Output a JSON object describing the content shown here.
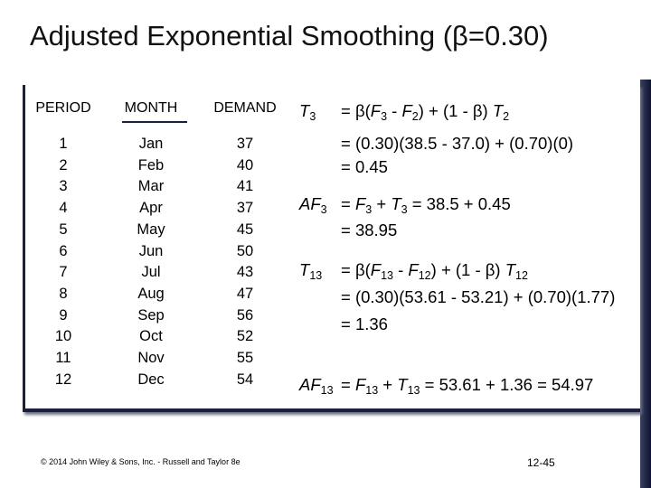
{
  "title": "Adjusted Exponential Smoothing (β=0.30)",
  "table": {
    "headers": [
      "PERIOD",
      "MONTH",
      "DEMAND"
    ],
    "rows": [
      [
        "1",
        "Jan",
        "37"
      ],
      [
        "2",
        "Feb",
        "40"
      ],
      [
        "3",
        "Mar",
        "41"
      ],
      [
        "4",
        "Apr",
        "37"
      ],
      [
        "5",
        "May",
        "45"
      ],
      [
        "6",
        "Jun",
        "50"
      ],
      [
        "7",
        "Jul",
        "43"
      ],
      [
        "8",
        "Aug",
        "47"
      ],
      [
        "9",
        "Sep",
        "56"
      ],
      [
        "10",
        "Oct",
        "52"
      ],
      [
        "11",
        "Nov",
        "55"
      ],
      [
        "12",
        "Dec",
        "54"
      ]
    ]
  },
  "formulas": [
    {
      "label": [
        "T",
        "3"
      ],
      "lines": [
        [
          "= β(",
          "F",
          "3",
          " - ",
          "F",
          "2",
          ") + (1 - β) ",
          "T",
          "2"
        ],
        [
          "= (0.30)(38.5 - 37.0) + (0.70)(0)"
        ],
        [
          "= 0.45"
        ]
      ]
    },
    {
      "label": [
        "AF",
        "3"
      ],
      "lines": [
        [
          "= ",
          "F",
          "3",
          " + ",
          "T",
          "3",
          " = 38.5 + 0.45"
        ],
        [
          "= 38.95"
        ]
      ]
    },
    {
      "label": [
        "T",
        "13"
      ],
      "lines": [
        [
          "= β(",
          "F",
          "13",
          " - ",
          "F",
          "12",
          ") + (1 - β) ",
          "T",
          "12"
        ],
        [
          "= (0.30)(53.61 - 53.21) + (0.70)(1.77)"
        ],
        [
          "= 1.36"
        ]
      ]
    },
    {
      "label": [
        "AF",
        "13"
      ],
      "lines": [
        [
          "= ",
          "F",
          "13",
          " + ",
          "T",
          "13",
          " = 53.61 + 1.36 = 54.97"
        ]
      ]
    }
  ],
  "footer": {
    "copyright": "© 2014 John Wiley & Sons, Inc. - Russell and Taylor 8e",
    "page": "12-45"
  }
}
